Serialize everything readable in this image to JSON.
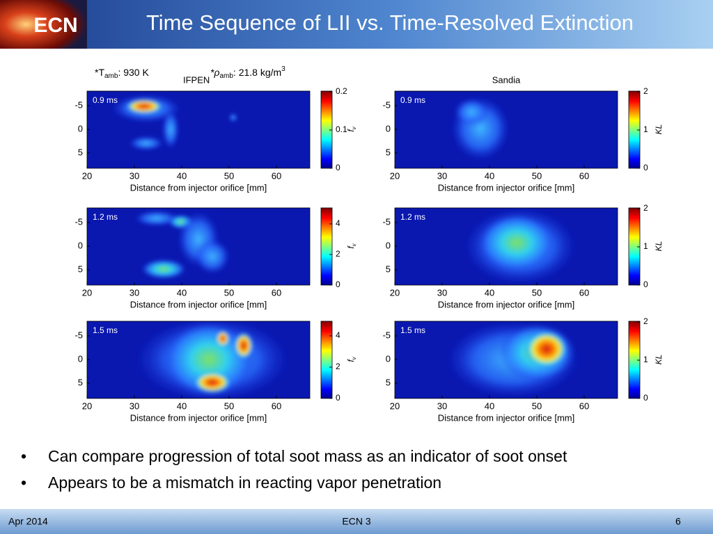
{
  "header": {
    "logo": "ECN",
    "title": "Time Sequence of LII vs. Time-Resolved Extinction"
  },
  "conditions": {
    "t": "*T",
    "t_sub": "amb",
    "t_value": ": 930 K",
    "rho": "*ρ",
    "rho_sub": "amb",
    "rho_value": ": 21.8 kg/m",
    "rho_sup": "3"
  },
  "sources": [
    "IFPEN",
    "Sandia"
  ],
  "panels": [
    {
      "label": "0.9 ms",
      "xticks": [
        20,
        30,
        40,
        50,
        60
      ],
      "yticks": [
        -5,
        0,
        5
      ],
      "xlabel": "Distance from injector orifice [mm]",
      "cbar_ticks": [
        0,
        0.1,
        0.2
      ],
      "cbar_label": "f",
      "cbar_label_sub": "v"
    },
    {
      "label": "0.9 ms",
      "xticks": [
        20,
        30,
        40,
        50,
        60
      ],
      "yticks": [
        -5,
        0,
        5
      ],
      "xlabel": "Distance from injector orifice [mm]",
      "cbar_ticks": [
        0,
        1,
        2
      ],
      "cbar_label": "KL"
    },
    {
      "label": "1.2 ms",
      "xticks": [
        20,
        30,
        40,
        50,
        60
      ],
      "yticks": [
        -5,
        0,
        5
      ],
      "xlabel": "Distance from injector orifice [mm]",
      "cbar_ticks": [
        0,
        2,
        4
      ],
      "cbar_label": "f",
      "cbar_label_sub": "v"
    },
    {
      "label": "1.2 ms",
      "xticks": [
        20,
        30,
        40,
        50,
        60
      ],
      "yticks": [
        -5,
        0,
        5
      ],
      "xlabel": "Distance from injector orifice [mm]",
      "cbar_ticks": [
        0,
        1,
        2
      ],
      "cbar_label": "KL"
    },
    {
      "label": "1.5 ms",
      "xticks": [
        20,
        30,
        40,
        50,
        60
      ],
      "yticks": [
        -5,
        0,
        5
      ],
      "xlabel": "Distance from injector orifice [mm]",
      "cbar_ticks": [
        0,
        2,
        4
      ],
      "cbar_label": "f",
      "cbar_label_sub": "v"
    },
    {
      "label": "1.5 ms",
      "xticks": [
        20,
        30,
        40,
        50,
        60
      ],
      "yticks": [
        -5,
        0,
        5
      ],
      "xlabel": "Distance from injector orifice [mm]",
      "cbar_ticks": [
        0,
        1,
        2
      ],
      "cbar_label": "KL"
    }
  ],
  "bullets": [
    "Can compare progression of total soot mass as an indicator of soot onset",
    "Appears to be a mismatch in reacting vapor penetration"
  ],
  "footer": {
    "date": "Apr 2014",
    "event": "ECN 3",
    "page": 6
  }
}
